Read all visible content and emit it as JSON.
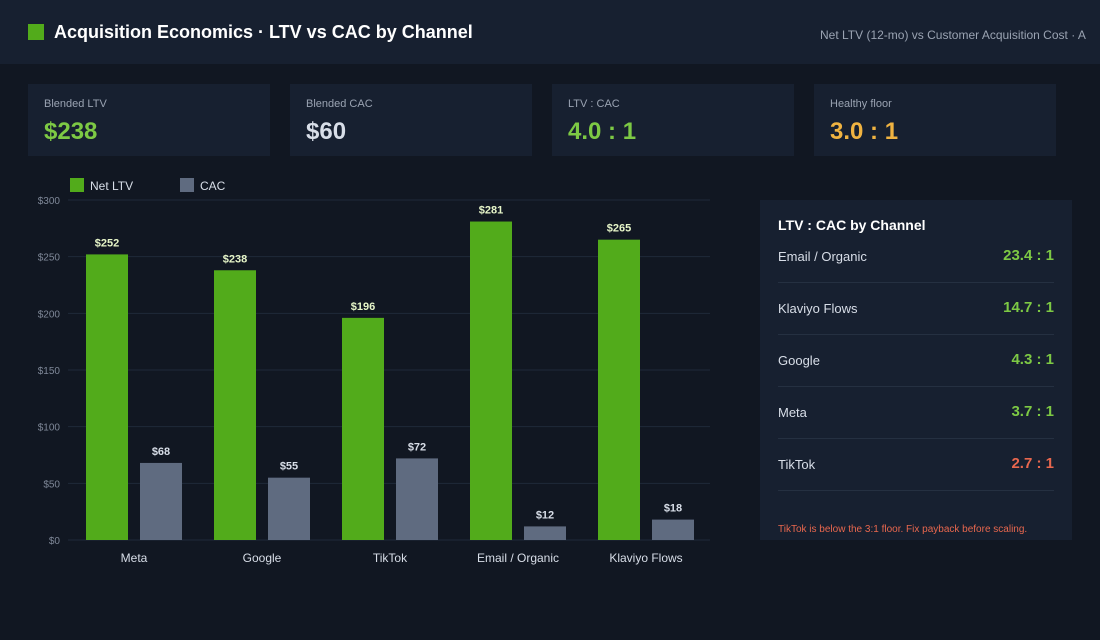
{
  "header": {
    "title": "Acquisition Economics  ·  LTV vs CAC by Channel",
    "subtitle": "Net LTV (12-mo)  vs  Customer Acquisition Cost  ·  A"
  },
  "kpis": [
    {
      "label": "Blended LTV",
      "value": "$238",
      "color": "#7dc944"
    },
    {
      "label": "Blended CAC",
      "value": "$60",
      "color": "#d8dee8"
    },
    {
      "label": "LTV : CAC",
      "value": "4.0 : 1",
      "color": "#7dc944"
    },
    {
      "label": "Healthy floor",
      "value": "3.0 : 1",
      "color": "#f0b341"
    }
  ],
  "chart_data": {
    "type": "bar",
    "categories": [
      "Meta",
      "Google",
      "TikTok",
      "Email / Organic",
      "Klaviyo Flows"
    ],
    "series": [
      {
        "name": "Net LTV",
        "values": [
          252,
          238,
          196,
          281,
          265
        ],
        "color": "#52ab1b",
        "labels": [
          "$252",
          "$238",
          "$196",
          "$281",
          "$265"
        ]
      },
      {
        "name": "CAC",
        "values": [
          68,
          55,
          72,
          12,
          18
        ],
        "color": "#5f6b80",
        "labels": [
          "$68",
          "$55",
          "$72",
          "$12",
          "$18"
        ]
      }
    ],
    "y_ticks": [
      0,
      50,
      100,
      150,
      200,
      250,
      300
    ],
    "y_tick_labels": [
      "$0",
      "$50",
      "$100",
      "$150",
      "$200",
      "$250",
      "$300"
    ],
    "ylim": [
      0,
      300
    ],
    "grid": true,
    "legend": "top-left"
  },
  "ratio_panel": {
    "title": "LTV : CAC by Channel",
    "rows": [
      {
        "channel": "Email / Organic",
        "ratio": "23.4 : 1",
        "color": "#7dc944"
      },
      {
        "channel": "Klaviyo Flows",
        "ratio": "14.7 : 1",
        "color": "#7dc944"
      },
      {
        "channel": "Google",
        "ratio": "4.3 : 1",
        "color": "#7dc944"
      },
      {
        "channel": "Meta",
        "ratio": "3.7 : 1",
        "color": "#7dc944"
      },
      {
        "channel": "TikTok",
        "ratio": "2.7 : 1",
        "color": "#e8674e"
      }
    ],
    "note": "TikTok is below the 3:1 floor. Fix payback before scaling."
  }
}
